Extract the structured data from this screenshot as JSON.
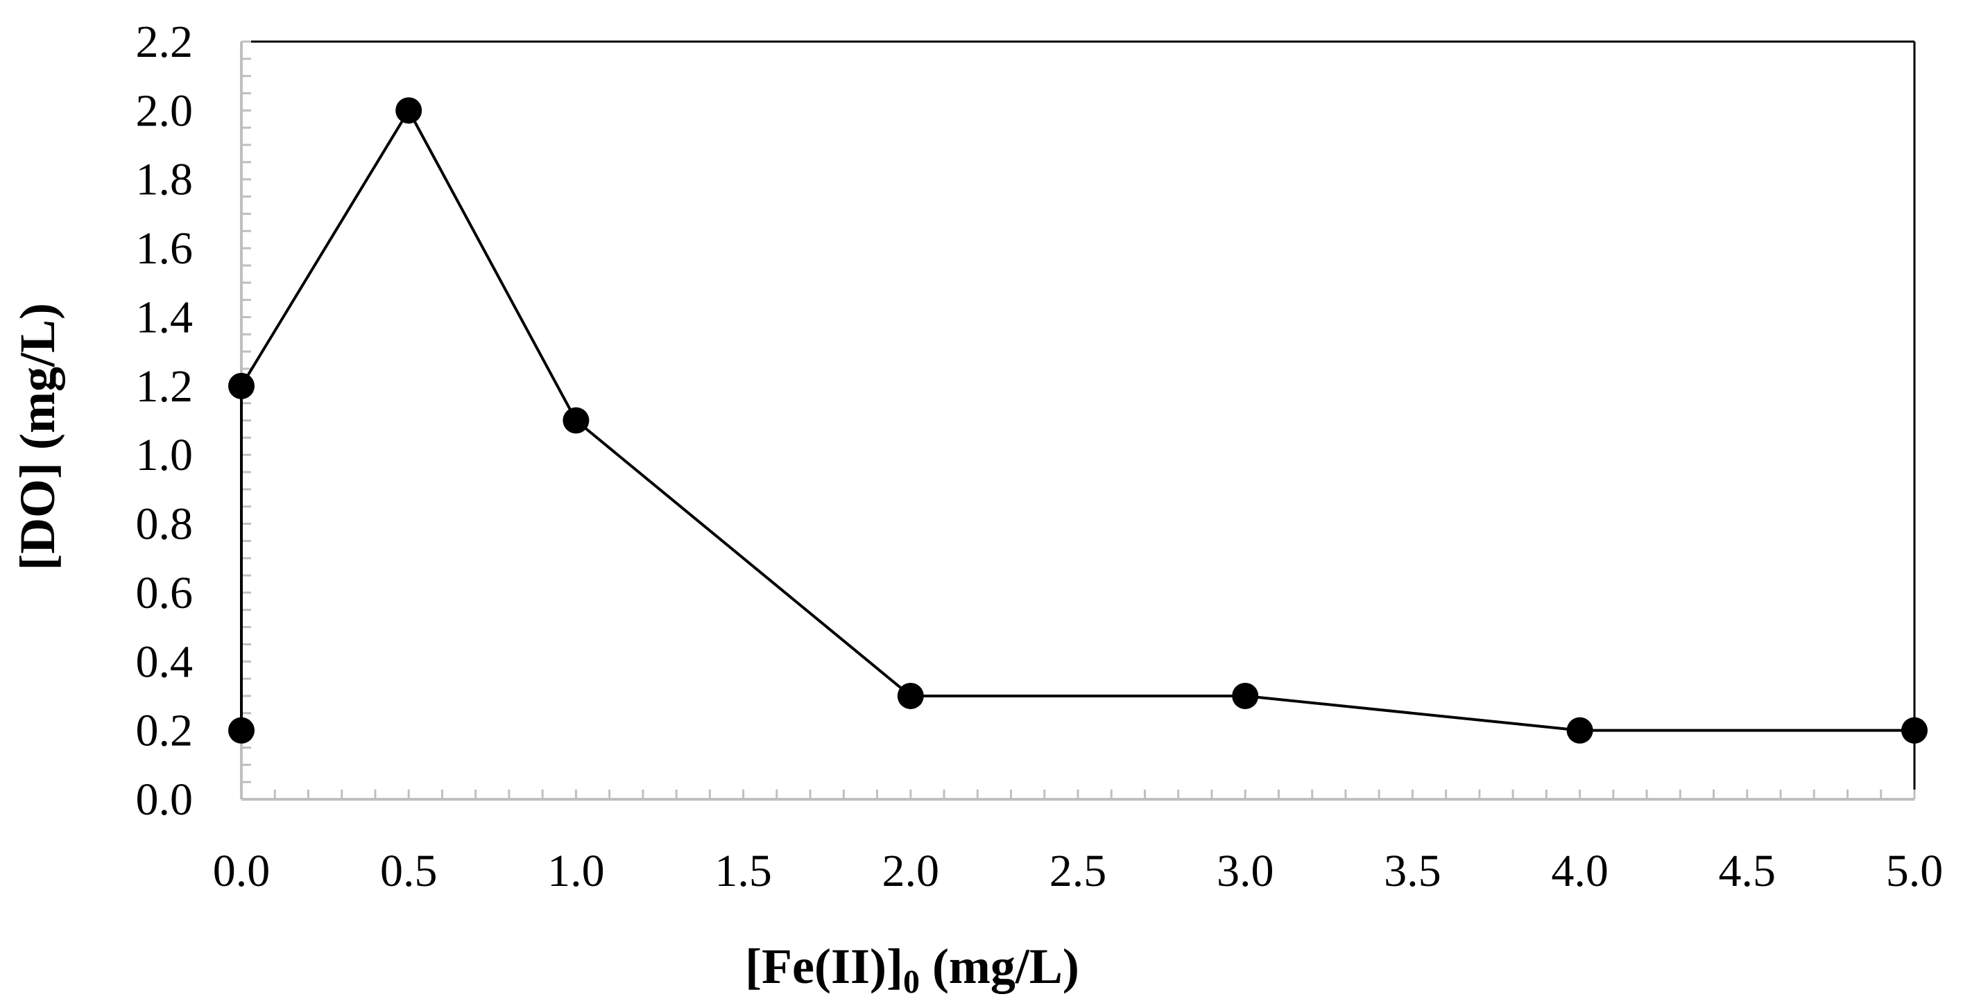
{
  "chart_data": {
    "type": "line",
    "xlabel": "[Fe(II)]",
    "xlabel_subscript": "0",
    "xlabel_suffix": " (mg/L)",
    "ylabel": "[DO] (mg/L)",
    "xlim": [
      0,
      5
    ],
    "ylim": [
      0,
      2.2
    ],
    "x_ticks": [
      "0.0",
      "0.5",
      "1.0",
      "1.5",
      "2.0",
      "2.5",
      "3.0",
      "3.5",
      "4.0",
      "4.5",
      "5.0"
    ],
    "y_ticks": [
      "0.0",
      "0.2",
      "0.4",
      "0.6",
      "0.8",
      "1.0",
      "1.2",
      "1.4",
      "1.6",
      "1.8",
      "2.0",
      "2.2"
    ],
    "grid": false,
    "series": [
      {
        "points": [
          {
            "x": 0,
            "y": 0.2
          },
          {
            "x": 0,
            "y": 1.2
          },
          {
            "x": 0.5,
            "y": 2.0
          },
          {
            "x": 1.0,
            "y": 1.1
          },
          {
            "x": 2.0,
            "y": 0.3
          },
          {
            "x": 3.0,
            "y": 0.3
          },
          {
            "x": 4.0,
            "y": 0.2
          },
          {
            "x": 5.0,
            "y": 0.2
          }
        ]
      }
    ],
    "colors": {
      "line": "#000000",
      "marker": "#000000",
      "axis": "#000000",
      "minor_tick": "#bfbfbf"
    }
  }
}
